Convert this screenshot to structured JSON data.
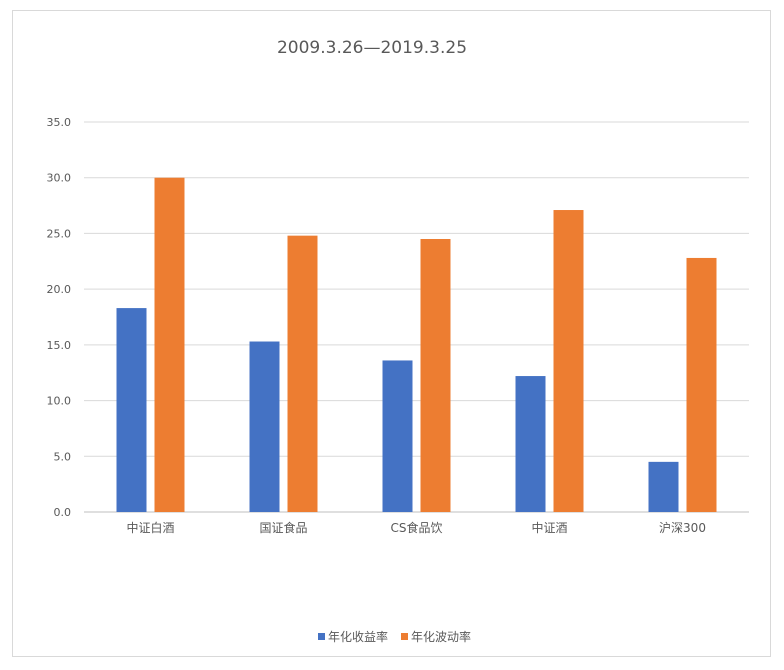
{
  "chart_data": {
    "type": "bar",
    "title": "2009.3.26—2019.3.25",
    "categories": [
      "中证白酒",
      "国证食品",
      "CS食品饮",
      "中证酒",
      "沪深300"
    ],
    "series": [
      {
        "name": "年化收益率",
        "color": "#4472C4",
        "values": [
          18.3,
          15.3,
          13.6,
          12.2,
          4.5
        ]
      },
      {
        "name": "年化波动率",
        "color": "#ED7D31",
        "values": [
          30.0,
          24.8,
          24.5,
          27.1,
          22.8
        ]
      }
    ],
    "ylim": [
      0,
      35
    ],
    "yticks": [
      "0.0",
      "5.0",
      "10.0",
      "15.0",
      "20.0",
      "25.0",
      "30.0",
      "35.0"
    ],
    "xlabel": "",
    "ylabel": "",
    "grid": true,
    "legend_position": "bottom"
  }
}
